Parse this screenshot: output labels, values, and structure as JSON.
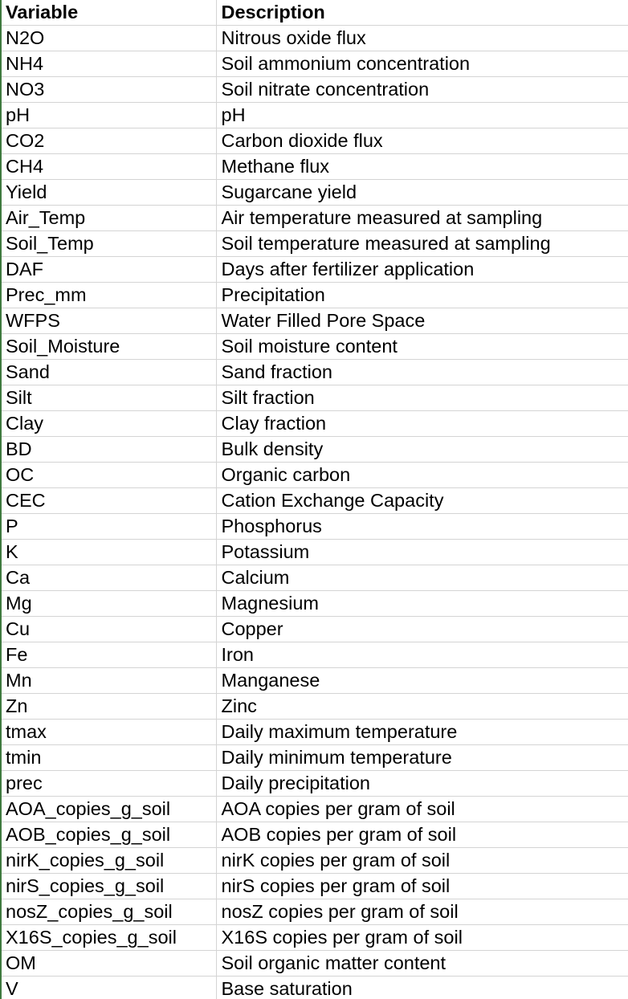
{
  "columns": [
    "Variable",
    "Description"
  ],
  "rows": [
    [
      "N2O",
      "Nitrous oxide flux"
    ],
    [
      "NH4",
      "Soil ammonium concentration"
    ],
    [
      "NO3",
      "Soil nitrate concentration"
    ],
    [
      "pH",
      "pH"
    ],
    [
      "CO2",
      "Carbon dioxide flux"
    ],
    [
      "CH4",
      "Methane flux"
    ],
    [
      "Yield",
      "Sugarcane yield"
    ],
    [
      "Air_Temp",
      "Air temperature measured at sampling"
    ],
    [
      "Soil_Temp",
      "Soil temperature measured at sampling"
    ],
    [
      "DAF",
      "Days after fertilizer application"
    ],
    [
      "Prec_mm",
      "Precipitation"
    ],
    [
      "WFPS",
      "Water Filled Pore Space"
    ],
    [
      "Soil_Moisture",
      "Soil moisture content"
    ],
    [
      "Sand",
      "Sand fraction"
    ],
    [
      "Silt",
      "Silt fraction"
    ],
    [
      "Clay",
      "Clay fraction"
    ],
    [
      "BD",
      "Bulk density"
    ],
    [
      "OC",
      "Organic carbon"
    ],
    [
      "CEC",
      "Cation Exchange Capacity"
    ],
    [
      "P",
      "Phosphorus"
    ],
    [
      "K",
      "Potassium"
    ],
    [
      "Ca",
      "Calcium"
    ],
    [
      "Mg",
      "Magnesium"
    ],
    [
      "Cu",
      "Copper"
    ],
    [
      "Fe",
      "Iron"
    ],
    [
      "Mn",
      "Manganese"
    ],
    [
      "Zn",
      "Zinc"
    ],
    [
      "tmax",
      "Daily maximum temperature"
    ],
    [
      "tmin",
      "Daily minimum temperature"
    ],
    [
      "prec",
      "Daily precipitation"
    ],
    [
      "AOA_copies_g_soil",
      "AOA copies per gram of soil"
    ],
    [
      "AOB_copies_g_soil",
      "AOB copies per gram of soil"
    ],
    [
      "nirK_copies_g_soil",
      "nirK copies per gram of soil"
    ],
    [
      "nirS_copies_g_soil",
      "nirS copies per gram of soil"
    ],
    [
      "nosZ_copies_g_soil",
      "nosZ copies per gram of soil"
    ],
    [
      "X16S_copies_g_soil",
      "X16S copies per gram of soil"
    ],
    [
      "OM",
      "Soil organic matter content"
    ],
    [
      "V",
      "Base saturation"
    ]
  ]
}
